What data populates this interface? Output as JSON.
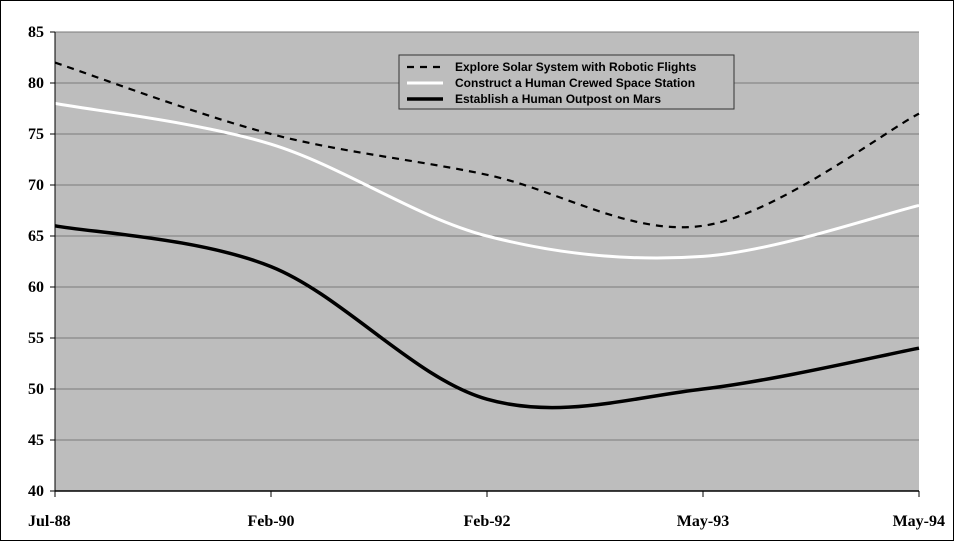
{
  "chart_data": {
    "type": "line",
    "title": "",
    "xlabel": "",
    "ylabel": "",
    "categories": [
      "Jul-88",
      "Feb-90",
      "Feb-92",
      "May-93",
      "May-94"
    ],
    "ylim": [
      40,
      85
    ],
    "yticks": [
      40,
      45,
      50,
      55,
      60,
      65,
      70,
      75,
      80,
      85
    ],
    "grid": true,
    "legend_position": "top-center",
    "plot_background": "#bdbdbd",
    "series": [
      {
        "name": "Explore Solar System with Robotic Flights",
        "style": "dashed",
        "color": "#000000",
        "x": [
          "Jul-88",
          "Feb-90",
          "Feb-92",
          "May-93",
          "May-94"
        ],
        "values": [
          82,
          75,
          71,
          66,
          77
        ]
      },
      {
        "name": "Construct a Human Crewed Space Station",
        "style": "solid",
        "color": "#ffffff",
        "x": [
          "Jul-88",
          "Feb-90",
          "Feb-92",
          "May-93",
          "May-94"
        ],
        "values": [
          78,
          74,
          65,
          63,
          68
        ]
      },
      {
        "name": "Establish a Human Outpost on Mars",
        "style": "solid-thick",
        "color": "#000000",
        "x": [
          "Jul-88",
          "Feb-90",
          "Feb-92",
          "May-93",
          "May-94"
        ],
        "values": [
          66,
          62,
          49,
          50,
          54
        ]
      }
    ]
  }
}
